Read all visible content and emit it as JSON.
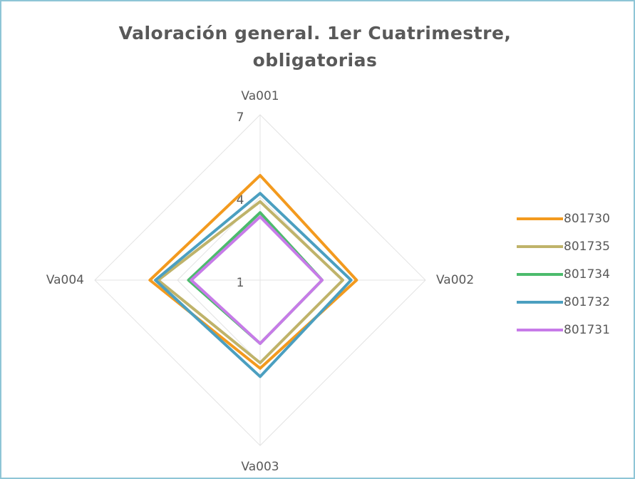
{
  "chart_data": {
    "type": "radar",
    "title": "Valoración general. 1er Cuatrimestre, obligatorias",
    "categories": [
      "Va001",
      "Va002",
      "Va003",
      "Va004"
    ],
    "ylim": [
      1,
      7
    ],
    "yticks": [
      1,
      4,
      7
    ],
    "grid": true,
    "series": [
      {
        "name": "801730",
        "color": "#f39a1e",
        "values": [
          4.8,
          4.5,
          4.2,
          5.0
        ]
      },
      {
        "name": "801735",
        "color": "#bfb36a",
        "values": [
          3.85,
          4.0,
          4.0,
          4.7
        ]
      },
      {
        "name": "801734",
        "color": "#4cbb6c",
        "values": [
          3.45,
          3.25,
          3.3,
          3.6
        ]
      },
      {
        "name": "801732",
        "color": "#4b9fc0",
        "values": [
          4.15,
          4.3,
          4.5,
          4.8
        ]
      },
      {
        "name": "801731",
        "color": "#c77be8",
        "values": [
          3.3,
          3.25,
          3.3,
          3.5
        ]
      }
    ]
  }
}
